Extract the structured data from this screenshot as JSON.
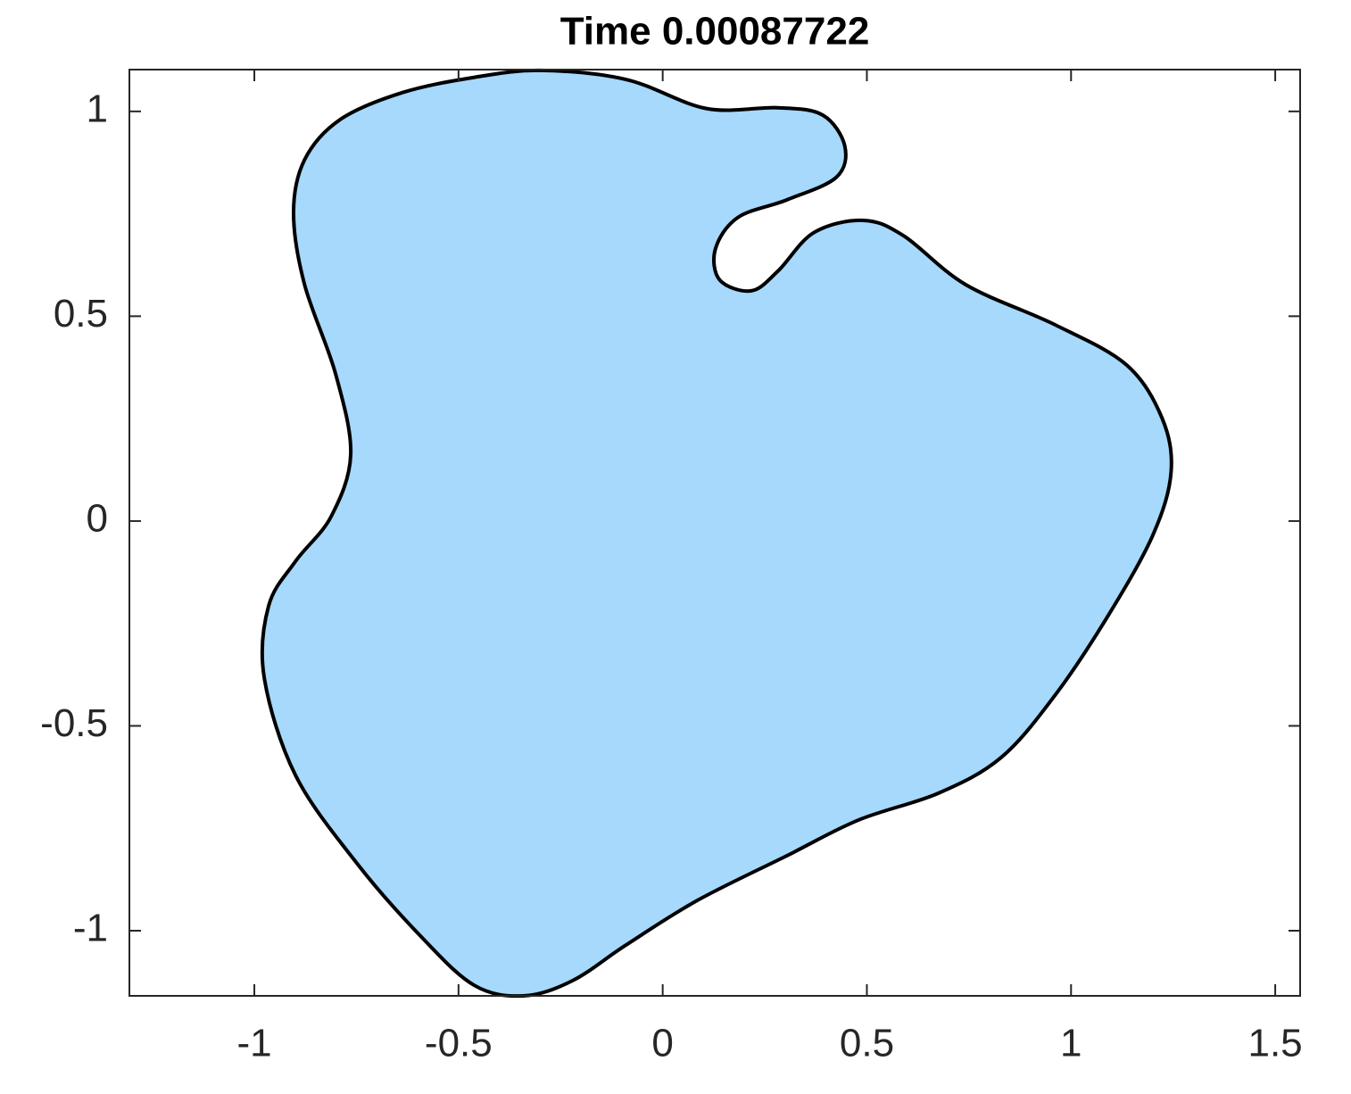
{
  "chart_data": {
    "type": "fill",
    "title": "Time 0.00087722",
    "x": [
      -0.3,
      -0.09,
      0.107,
      0.282,
      0.392,
      0.446,
      0.425,
      0.304,
      0.184,
      0.129,
      0.14,
      0.217,
      0.282,
      0.37,
      0.49,
      0.589,
      0.742,
      0.961,
      1.136,
      1.223,
      1.245,
      1.201,
      1.092,
      0.961,
      0.829,
      0.676,
      0.479,
      0.304,
      0.085,
      -0.09,
      -0.221,
      -0.341,
      -0.462,
      -0.593,
      -0.746,
      -0.899,
      -0.976,
      -0.965,
      -0.899,
      -0.812,
      -0.764,
      -0.801,
      -0.877,
      -0.904,
      -0.877,
      -0.79,
      -0.637,
      -0.462
    ],
    "y": [
      1.1,
      1.078,
      1.007,
      1.009,
      0.991,
      0.915,
      0.839,
      0.784,
      0.741,
      0.664,
      0.588,
      0.562,
      0.61,
      0.704,
      0.734,
      0.697,
      0.577,
      0.479,
      0.381,
      0.251,
      0.12,
      -0.033,
      -0.229,
      -0.425,
      -0.577,
      -0.664,
      -0.73,
      -0.817,
      -0.926,
      -1.035,
      -1.122,
      -1.159,
      -1.133,
      -1.013,
      -0.839,
      -0.621,
      -0.381,
      -0.207,
      -0.098,
      0.011,
      0.163,
      0.359,
      0.577,
      0.752,
      0.882,
      0.98,
      1.046,
      1.083
    ],
    "color": "#a6d9fc",
    "edgecolor": "#000000",
    "xlim": [
      -1.306,
      1.561
    ],
    "xticks": [
      -1,
      -0.5,
      0,
      0.5,
      1,
      1.5
    ],
    "ylim": [
      -1.159,
      1.102
    ],
    "yticks": [
      -1,
      -0.5,
      0,
      0.5,
      1
    ],
    "grid": false
  }
}
